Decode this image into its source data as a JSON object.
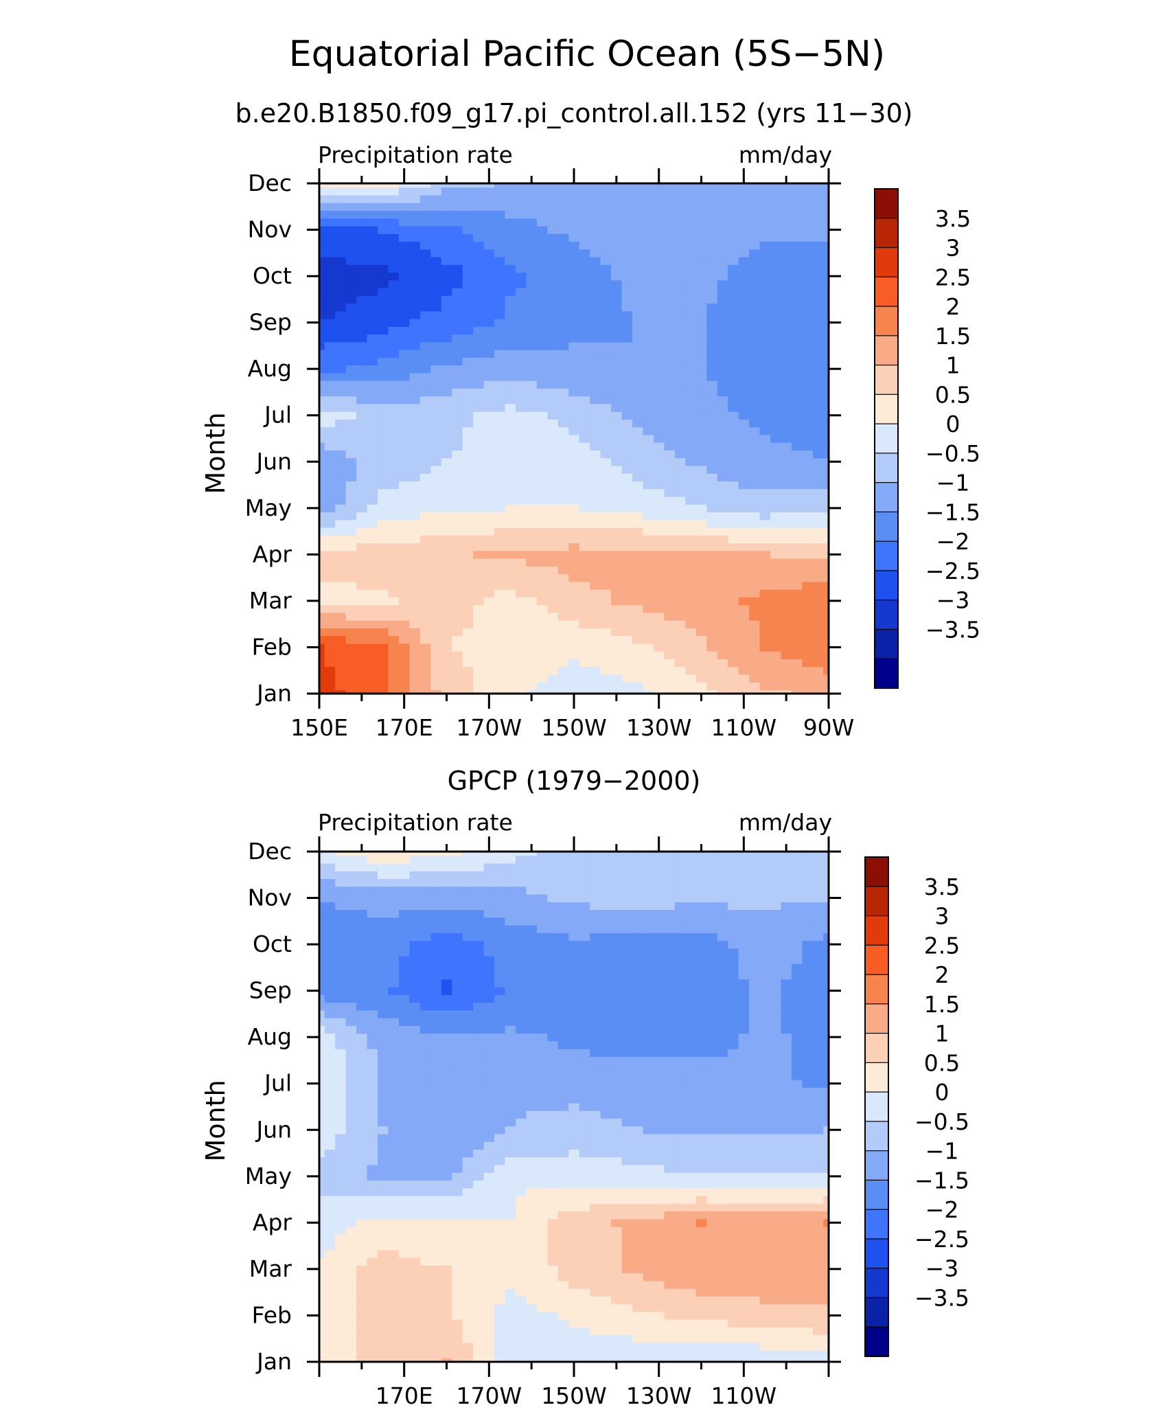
{
  "title": "Equatorial Pacific Ocean (5S−5N)",
  "colormap": [
    "#00008b",
    "#0a22a8",
    "#1538cf",
    "#1f50f0",
    "#3f74ff",
    "#5a8ef5",
    "#84a9f7",
    "#b2cbf8",
    "#dae8fb",
    "#fdebd8",
    "#fcd0b7",
    "#f9aa86",
    "#f7834f",
    "#f75d25",
    "#e23a0a",
    "#b82606",
    "#8b0f04"
  ],
  "chart_data": [
    {
      "type": "heatmap",
      "subtitle": "b.e20.B1850.f09_g17.pi_control.all.152 (yrs 11−30)",
      "left_label": "Precipitation rate",
      "right_label": "mm/day",
      "ylabel": "Month",
      "x": [
        "150E",
        "170E",
        "170W",
        "150W",
        "130W",
        "110W",
        "90W"
      ],
      "y": [
        "Jan",
        "Feb",
        "Mar",
        "Apr",
        "May",
        "Jun",
        "Jul",
        "Aug",
        "Sep",
        "Oct",
        "Nov",
        "Dec"
      ],
      "z": [
        [
          3.2,
          2.6,
          1.3,
          0.6,
          0.2,
          0.4,
          0.9,
          1.4,
          1.7
        ],
        [
          3.0,
          2.6,
          1.0,
          0.8,
          0.6,
          0.9,
          1.4,
          2.0,
          2.3
        ],
        [
          0.8,
          0.9,
          1.2,
          0.8,
          1.3,
          1.6,
          1.8,
          2.1,
          2.4
        ],
        [
          1.2,
          1.3,
          1.4,
          1.6,
          1.7,
          1.7,
          1.6,
          1.5,
          1.4
        ],
        [
          -0.8,
          0.2,
          0.4,
          0.5,
          0.5,
          0.3,
          0.0,
          -0.3,
          -0.2
        ],
        [
          -0.9,
          -0.3,
          0.0,
          0.4,
          0.3,
          -0.2,
          -0.6,
          -0.9,
          -1.0
        ],
        [
          0.3,
          -0.3,
          -0.2,
          0.2,
          -0.2,
          -0.6,
          -0.9,
          -1.1,
          -1.2
        ],
        [
          -1.6,
          -1.3,
          -0.9,
          -0.7,
          -0.9,
          -1.0,
          -1.0,
          -1.2,
          -1.3
        ],
        [
          -2.5,
          -2.2,
          -1.8,
          -1.4,
          -1.1,
          -1.0,
          -1.0,
          -1.3,
          -1.4
        ],
        [
          -2.8,
          -2.6,
          -2.2,
          -1.6,
          -1.2,
          -0.9,
          -0.9,
          -1.2,
          -1.2
        ],
        [
          -2.2,
          -2.0,
          -1.6,
          -1.2,
          -0.9,
          -0.8,
          -0.8,
          -0.9,
          -0.9
        ],
        [
          0.6,
          0.7,
          -0.3,
          -0.6,
          -0.6,
          -0.6,
          -0.6,
          -0.6,
          -0.6
        ]
      ],
      "colorbar": {
        "levels": [
          -3.5,
          -3,
          -2.5,
          -2,
          -1.5,
          -1,
          -0.5,
          0,
          0.5,
          1,
          1.5,
          2,
          2.5,
          3,
          3.5
        ],
        "labels": [
          "3.5",
          "3",
          "2.5",
          "2",
          "1.5",
          "1",
          "0.5",
          "0",
          "−0.5",
          "−1",
          "−1.5",
          "−2",
          "−2.5",
          "−3",
          "−3.5"
        ]
      }
    },
    {
      "type": "heatmap",
      "subtitle": "GPCP (1979−2000)",
      "left_label": "Precipitation rate",
      "right_label": "mm/day",
      "ylabel": "Month",
      "x": [
        "170E",
        "170W",
        "150W",
        "130W",
        "110W"
      ],
      "y": [
        "Jan",
        "Feb",
        "Mar",
        "Apr",
        "May",
        "Jun",
        "Jul",
        "Aug",
        "Sep",
        "Oct",
        "Nov",
        "Dec"
      ],
      "z": [
        [
          0.6,
          1.2,
          1.5,
          0.3,
          0.2,
          0.1,
          0.0,
          0.1,
          0.3
        ],
        [
          0.7,
          1.2,
          1.1,
          0.3,
          0.6,
          0.9,
          1.1,
          1.3,
          1.4
        ],
        [
          0.6,
          1.2,
          1.0,
          0.6,
          1.2,
          1.6,
          1.9,
          1.9,
          1.9
        ],
        [
          0.2,
          0.7,
          0.6,
          0.5,
          1.3,
          1.6,
          2.0,
          1.9,
          2.0
        ],
        [
          -0.2,
          -0.6,
          -0.6,
          0.4,
          0.3,
          0.2,
          0.0,
          0.0,
          0.0
        ],
        [
          0.3,
          -0.5,
          -0.9,
          -0.5,
          -0.3,
          -0.5,
          -0.6,
          -0.6,
          -0.5
        ],
        [
          0.4,
          -0.6,
          -0.7,
          -0.6,
          -0.7,
          -0.8,
          -0.8,
          -0.9,
          -1.1
        ],
        [
          0.3,
          -0.7,
          -0.9,
          -0.9,
          -1.1,
          -1.2,
          -1.2,
          -0.9,
          -1.2
        ],
        [
          -1.2,
          -1.4,
          -2.1,
          -1.4,
          -1.3,
          -1.4,
          -1.3,
          -0.9,
          -1.3
        ],
        [
          -1.3,
          -1.3,
          -1.8,
          -1.3,
          -1.1,
          -1.2,
          -1.2,
          -0.8,
          -1.1
        ],
        [
          -1.0,
          -0.8,
          -0.8,
          -0.7,
          -0.4,
          -0.3,
          -0.4,
          -0.4,
          -0.5
        ],
        [
          0.3,
          0.9,
          0.6,
          0.2,
          -0.3,
          -0.4,
          -0.4,
          -0.4,
          -0.4
        ]
      ],
      "colorbar": {
        "levels": [
          -3.5,
          -3,
          -2.5,
          -2,
          -1.5,
          -1,
          -0.5,
          0,
          0.5,
          1,
          1.5,
          2,
          2.5,
          3,
          3.5
        ],
        "labels": [
          "3.5",
          "3",
          "2.5",
          "2",
          "1.5",
          "1",
          "0.5",
          "0",
          "−0.5",
          "−1",
          "−1.5",
          "−2",
          "−2.5",
          "−3",
          "−3.5"
        ]
      }
    }
  ]
}
